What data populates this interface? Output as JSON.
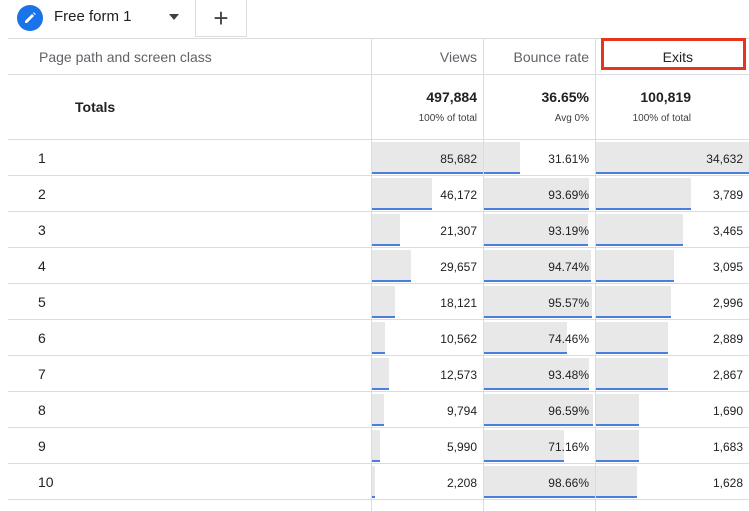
{
  "tabs": {
    "active_label": "Free form 1",
    "add_label": "+"
  },
  "columns": {
    "dimension": "Page path and screen class",
    "views": "Views",
    "bounce_rate": "Bounce rate",
    "exits": "Exits"
  },
  "totals": {
    "label": "Totals",
    "views": "497,884",
    "views_sub": "100% of total",
    "bounce_rate": "36.65%",
    "bounce_rate_sub": "Avg 0%",
    "exits": "100,819",
    "exits_sub": "100% of total"
  },
  "rows": [
    {
      "rank": "1",
      "views": "85,682",
      "views_frac": 1.0,
      "bounce": "31.61%",
      "bounce_frac": 0.32,
      "exits": "34,632",
      "exits_frac": 1.0
    },
    {
      "rank": "2",
      "views": "46,172",
      "views_frac": 0.54,
      "bounce": "93.69%",
      "bounce_frac": 0.95,
      "exits": "3,789",
      "exits_frac": 0.62
    },
    {
      "rank": "3",
      "views": "21,307",
      "views_frac": 0.25,
      "bounce": "93.19%",
      "bounce_frac": 0.94,
      "exits": "3,465",
      "exits_frac": 0.57
    },
    {
      "rank": "4",
      "views": "29,657",
      "views_frac": 0.35,
      "bounce": "94.74%",
      "bounce_frac": 0.96,
      "exits": "3,095",
      "exits_frac": 0.51
    },
    {
      "rank": "5",
      "views": "18,121",
      "views_frac": 0.21,
      "bounce": "95.57%",
      "bounce_frac": 0.97,
      "exits": "2,996",
      "exits_frac": 0.49
    },
    {
      "rank": "6",
      "views": "10,562",
      "views_frac": 0.12,
      "bounce": "74.46%",
      "bounce_frac": 0.75,
      "exits": "2,889",
      "exits_frac": 0.47
    },
    {
      "rank": "7",
      "views": "12,573",
      "views_frac": 0.15,
      "bounce": "93.48%",
      "bounce_frac": 0.95,
      "exits": "2,867",
      "exits_frac": 0.47
    },
    {
      "rank": "8",
      "views": "9,794",
      "views_frac": 0.11,
      "bounce": "96.59%",
      "bounce_frac": 0.98,
      "exits": "1,690",
      "exits_frac": 0.28
    },
    {
      "rank": "9",
      "views": "5,990",
      "views_frac": 0.07,
      "bounce": "71.16%",
      "bounce_frac": 0.72,
      "exits": "1,683",
      "exits_frac": 0.28
    },
    {
      "rank": "10",
      "views": "2,208",
      "views_frac": 0.03,
      "bounce": "98.66%",
      "bounce_frac": 1.0,
      "exits": "1,628",
      "exits_frac": 0.27
    }
  ],
  "colors": {
    "accent": "#1a73e8",
    "bar_fill": "#e8e8e8",
    "bar_line": "#4a7fde",
    "highlight": "#e8341c"
  }
}
